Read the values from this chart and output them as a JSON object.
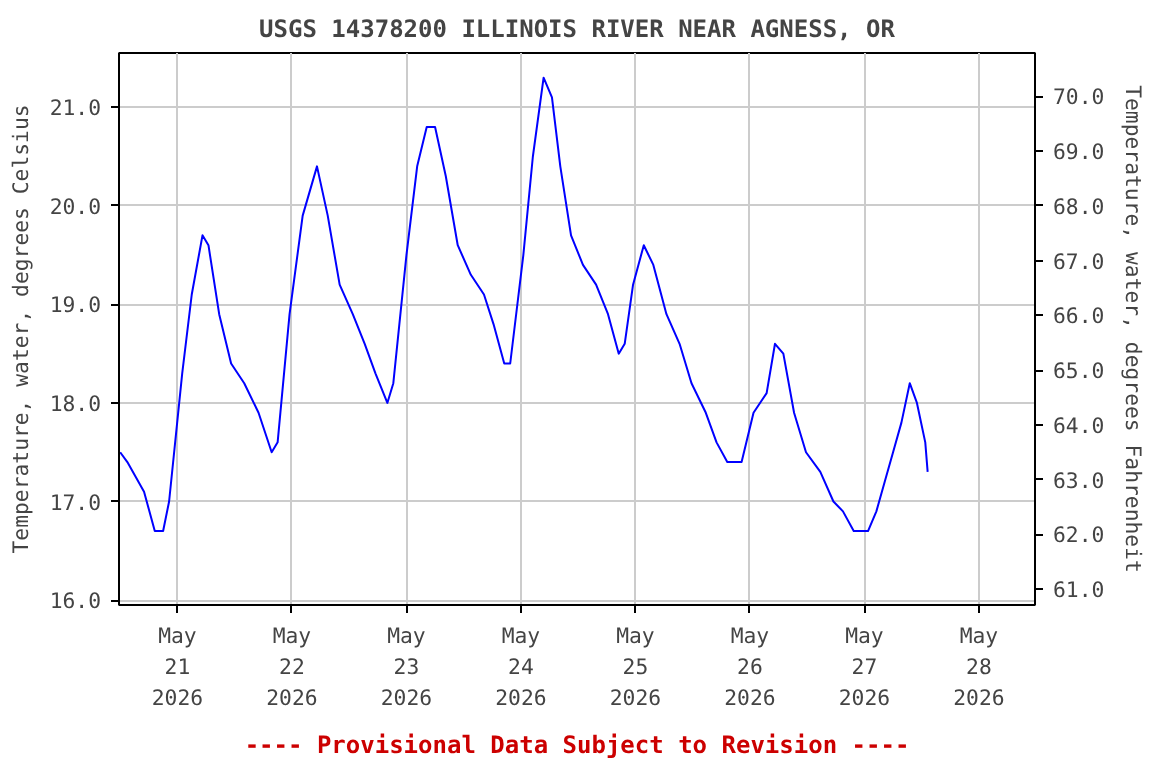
{
  "chart_data": {
    "type": "line",
    "title": "USGS 14378200 ILLINOIS RIVER NEAR AGNESS, OR",
    "ylabel": "Temperature, water, degrees Celsius",
    "y2label": "Temperature, water, degrees Fahrenheit",
    "annotations": [
      "---- Provisional Data Subject to Revision ----"
    ],
    "xlim": [
      "2026-05-20T11:45",
      "2026-05-28T11:45"
    ],
    "xticks": [
      {
        "value": "2026-05-21",
        "label": "May\n21\n2026"
      },
      {
        "value": "2026-05-22",
        "label": "May\n22\n2026"
      },
      {
        "value": "2026-05-23",
        "label": "May\n23\n2026"
      },
      {
        "value": "2026-05-24",
        "label": "May\n24\n2026"
      },
      {
        "value": "2026-05-25",
        "label": "May\n25\n2026"
      },
      {
        "value": "2026-05-26",
        "label": "May\n26\n2026"
      },
      {
        "value": "2026-05-27",
        "label": "May\n27\n2026"
      },
      {
        "value": "2026-05-28",
        "label": "May\n28\n2026"
      }
    ],
    "ylim": [
      15.95,
      21.55
    ],
    "yticks": [
      {
        "value": 16,
        "label": "16.0"
      },
      {
        "value": 17,
        "label": "17.0"
      },
      {
        "value": 18,
        "label": "18.0"
      },
      {
        "value": 19,
        "label": "19.0"
      },
      {
        "value": 20,
        "label": "20.0"
      },
      {
        "value": 21,
        "label": "21.0"
      }
    ],
    "y2lim": [
      60.71,
      70.79
    ],
    "y2ticks": [
      {
        "value": 61,
        "label": "61.0"
      },
      {
        "value": 62,
        "label": "62.0"
      },
      {
        "value": 63,
        "label": "63.0"
      },
      {
        "value": 64,
        "label": "64.0"
      },
      {
        "value": 65,
        "label": "65.0"
      },
      {
        "value": 66,
        "label": "66.0"
      },
      {
        "value": 67,
        "label": "67.0"
      },
      {
        "value": 68,
        "label": "68.0"
      },
      {
        "value": 69,
        "label": "69.0"
      },
      {
        "value": 70,
        "label": "70.0"
      }
    ],
    "grid": true,
    "marker": "none",
    "line_style": "solid",
    "x": [
      "2026-05-20T12:00",
      "2026-05-20T13:30",
      "2026-05-20T17:00",
      "2026-05-20T19:15",
      "2026-05-20T21:00",
      "2026-05-20T22:15",
      "2026-05-21T01:00",
      "2026-05-21T03:00",
      "2026-05-21T05:15",
      "2026-05-21T06:30",
      "2026-05-21T08:45",
      "2026-05-21T11:15",
      "2026-05-21T14:00",
      "2026-05-21T17:00",
      "2026-05-21T19:45",
      "2026-05-21T21:00",
      "2026-05-21T23:30",
      "2026-05-22T02:15",
      "2026-05-22T05:15",
      "2026-05-22T07:30",
      "2026-05-22T10:00",
      "2026-05-22T12:45",
      "2026-05-22T15:15",
      "2026-05-22T17:30",
      "2026-05-22T20:00",
      "2026-05-22T21:15",
      "2026-05-23T00:00",
      "2026-05-23T02:15",
      "2026-05-23T04:15",
      "2026-05-23T06:00",
      "2026-05-23T08:15",
      "2026-05-23T10:45",
      "2026-05-23T13:30",
      "2026-05-23T16:15",
      "2026-05-23T18:15",
      "2026-05-23T20:30",
      "2026-05-23T21:45",
      "2026-05-24T00:30",
      "2026-05-24T02:30",
      "2026-05-24T04:45",
      "2026-05-24T06:30",
      "2026-05-24T08:15",
      "2026-05-24T10:30",
      "2026-05-24T13:00",
      "2026-05-24T15:45",
      "2026-05-24T18:15",
      "2026-05-24T20:30",
      "2026-05-24T21:45",
      "2026-05-24T23:30",
      "2026-05-25T01:45",
      "2026-05-25T03:45",
      "2026-05-25T06:30",
      "2026-05-25T09:15",
      "2026-05-25T11:45",
      "2026-05-25T14:45",
      "2026-05-25T17:00",
      "2026-05-25T19:15",
      "2026-05-25T22:15",
      "2026-05-26T00:45",
      "2026-05-26T03:30",
      "2026-05-26T05:15",
      "2026-05-26T07:00",
      "2026-05-26T09:15",
      "2026-05-26T11:45",
      "2026-05-26T14:45",
      "2026-05-26T17:30",
      "2026-05-26T19:30",
      "2026-05-26T21:45",
      "2026-05-27T00:45",
      "2026-05-27T02:30",
      "2026-05-27T04:15",
      "2026-05-27T06:00",
      "2026-05-27T07:45",
      "2026-05-27T09:30",
      "2026-05-27T11:00",
      "2026-05-27T12:45",
      "2026-05-27T13:15"
    ],
    "series": [
      {
        "color": "#0000ff",
        "values": [
          17.5,
          17.4,
          17.1,
          16.7,
          16.7,
          17.0,
          18.3,
          19.1,
          19.7,
          19.6,
          18.9,
          18.4,
          18.2,
          17.9,
          17.5,
          17.6,
          18.9,
          19.9,
          20.4,
          19.9,
          19.2,
          18.9,
          18.6,
          18.3,
          18.0,
          18.2,
          19.5,
          20.4,
          20.8,
          20.8,
          20.3,
          19.6,
          19.3,
          19.1,
          18.8,
          18.4,
          18.4,
          19.5,
          20.5,
          21.3,
          21.1,
          20.4,
          19.7,
          19.4,
          19.2,
          18.9,
          18.5,
          18.6,
          19.2,
          19.6,
          19.4,
          18.9,
          18.6,
          18.2,
          17.9,
          17.6,
          17.4,
          17.4,
          17.9,
          18.1,
          18.6,
          18.5,
          17.9,
          17.5,
          17.3,
          17.0,
          16.9,
          16.7,
          16.7,
          16.9,
          17.2,
          17.5,
          17.8,
          18.2,
          18.0,
          17.6,
          17.3
        ]
      }
    ]
  }
}
